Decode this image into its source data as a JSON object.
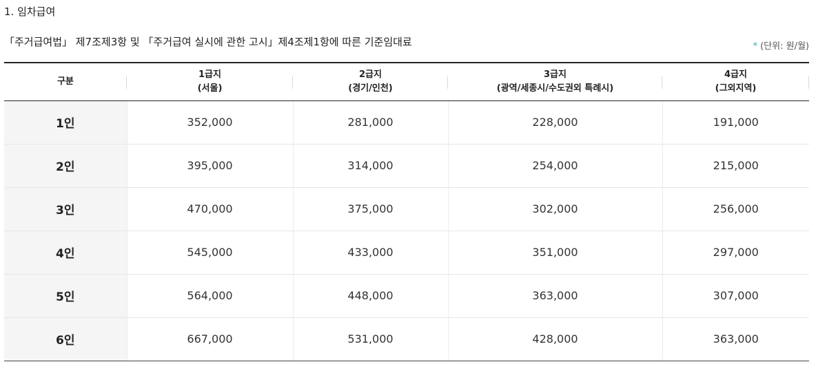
{
  "section_title": "1. 임차급여",
  "caption": "「주거급여법」 제7조제3항 및 「주거급여 실시에 관한 고시」제4조제1항에 따른 기준임대료",
  "unit_marker": "*",
  "unit_text": "(단위: 원/월)",
  "table": {
    "header": {
      "label": "구분",
      "columns": [
        {
          "grade": "1급지",
          "region": "(서울)"
        },
        {
          "grade": "2급지",
          "region": "(경기/인천)"
        },
        {
          "grade": "3급지",
          "region": "(광역/세종시/수도권외 특례시)"
        },
        {
          "grade": "4급지",
          "region": "(그외지역)"
        }
      ]
    },
    "rows": [
      {
        "label": "1인",
        "values": [
          "352,000",
          "281,000",
          "228,000",
          "191,000"
        ]
      },
      {
        "label": "2인",
        "values": [
          "395,000",
          "314,000",
          "254,000",
          "215,000"
        ]
      },
      {
        "label": "3인",
        "values": [
          "470,000",
          "375,000",
          "302,000",
          "256,000"
        ]
      },
      {
        "label": "4인",
        "values": [
          "545,000",
          "433,000",
          "351,000",
          "297,000"
        ]
      },
      {
        "label": "5인",
        "values": [
          "564,000",
          "448,000",
          "363,000",
          "307,000"
        ]
      },
      {
        "label": "6인",
        "values": [
          "667,000",
          "531,000",
          "428,000",
          "363,000"
        ]
      }
    ]
  }
}
